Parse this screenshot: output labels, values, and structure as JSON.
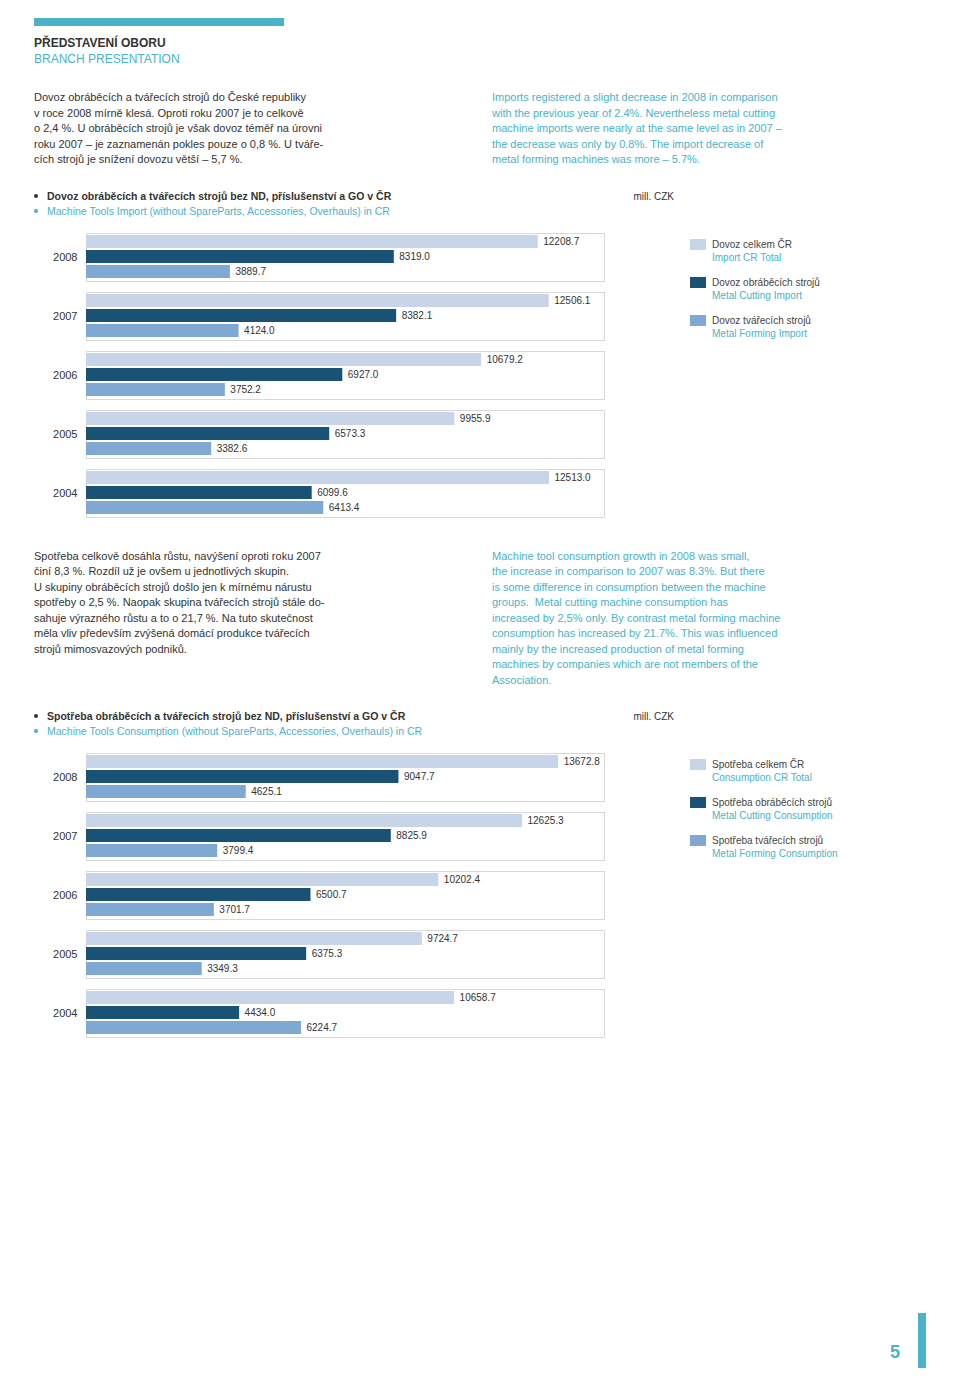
{
  "title": "PŘEDSTAVENÍ OBORU",
  "subtitle": "BRANCH PRESENTATION",
  "annotations": [
    "5"
  ],
  "chart_data": [
    {
      "type": "bar",
      "orientation": "horizontal",
      "title": "Dovoz obráběcích a tvářecích strojů bez ND, příslušenství a GO v ČR",
      "subtitle": "Machine Tools Import (without SpareParts, Accessories, Overhauls) in CR",
      "xlabel": "mill. CZK",
      "annotations": [
        [
          "Dovoz obráběcích a tvářecích strojů do České republiky",
          "v roce 2008 mírně klesá. Oproti roku 2007 je to celkově",
          "o 2,4 %. U obráběcích strojů je však dovoz téměř na úrovni",
          "roku 2007 – je zaznamenán pokles pouze o 0,8 %. U tváře-",
          "cích strojů je snížení dovozu větší – 5,7 %."
        ],
        [
          "Imports registered a slight decrease in 2008 in comparison",
          "with the previous year of 2.4%. Nevertheless metal cutting",
          "machine imports were nearly at the same level as in 2007 –",
          "the decrease was only by 0.8%. The import decrease of",
          "metal forming machines was more – 5.7%."
        ]
      ],
      "categories": [
        "2008",
        "2007",
        "2006",
        "2005",
        "2004"
      ],
      "series": [
        {
          "name": "Dovoz celkem ČR\nImport CR Total",
          "color": "#c8d4e8",
          "values": [
            12208.7,
            12506.1,
            10679.2,
            9955.9,
            12513.0
          ],
          "value_labels": [
            "12208.7",
            "12506.1",
            "10679.2",
            "9955.9",
            "12513.0"
          ]
        },
        {
          "name": "Dovoz obráběcích strojů\nMetal Cutting Import",
          "color": "#1a5276",
          "values": [
            8319.0,
            8382.1,
            6927.0,
            6573.3,
            6099.6
          ],
          "value_labels": [
            "8319.0",
            "8382.1",
            "6927.0",
            "6573.3",
            "6099.6"
          ]
        },
        {
          "name": "Dovoz tvářecích strojů\nMetal Forming Import",
          "color": "#7fa8d2",
          "values": [
            3889.7,
            4124.0,
            3752.2,
            3382.6,
            6413.4
          ],
          "value_labels": [
            "3889.7",
            "4124.0",
            "3752.2",
            "3382.6",
            "6413.4"
          ]
        }
      ],
      "xlim": [
        0,
        14000
      ],
      "xticks": [],
      "tick_labels": "y",
      "grid": false,
      "legend": "right",
      "data_labels": true
    },
    {
      "type": "bar",
      "orientation": "horizontal",
      "title": "Spotřeba obráběcích a tvářecích strojů bez ND, příslušenství a GO v ČR",
      "subtitle": "Machine Tools Consumption (without SpareParts, Accessories, Overhauls) in CR",
      "xlabel": "mill. CZK",
      "annotations": [
        [
          "Spotřeba celkově dosáhla růstu, navýšení oproti roku 2007",
          "činí 8,3 %. Rozdíl už je ovšem u jednotlivých skupin.",
          "U skupiny obráběcích strojů došlo jen k mírnému nárustu",
          "spotřeby o 2,5 %. Naopak skupina tvářecích strojů stále do-",
          "sahuje výrazného růstu a to o 21,7 %. Na tuto skutečnost",
          "měla vliv především zvýšená domácí produkce tvářecích",
          "strojů mimosvazových podniků."
        ],
        [
          "Machine tool consumption growth in 2008 was small,",
          "the increase in comparison to 2007 was 8.3%. But there",
          "is some difference in consumption between the machine",
          "groups.  Metal cutting machine consumption has",
          "increased by 2,5% only. By contrast metal forming machine",
          "consumption has increased by 21.7%. This was influenced",
          "mainly by the increased production of metal forming",
          "machines by companies which are not members of the",
          "Association."
        ]
      ],
      "categories": [
        "2008",
        "2007",
        "2006",
        "2005",
        "2004"
      ],
      "series": [
        {
          "name": "Spotřeba celkem ČR\nConsumption CR Total",
          "color": "#c8d4e8",
          "values": [
            13672.8,
            12625.3,
            10202.4,
            9724.7,
            10658.7
          ],
          "value_labels": [
            "13672.8",
            "12625.3",
            "10202.4",
            "9724.7",
            "10658.7"
          ]
        },
        {
          "name": "Spotřeba obráběcích strojů\nMetal Cutting Consumption",
          "color": "#1a5276",
          "values": [
            9047.7,
            8825.9,
            6500.7,
            6375.3,
            4434.0
          ],
          "value_labels": [
            "9047.7",
            "8825.9",
            "6500.7",
            "6375.3",
            "4434.0"
          ]
        },
        {
          "name": "Spotřeba tvářecích strojů\nMetal Forming Consumption",
          "color": "#7fa8d2",
          "values": [
            4625.1,
            3799.4,
            3701.7,
            3349.3,
            6224.7
          ],
          "value_labels": [
            "4625.1",
            "3799.4",
            "3701.7",
            "3349.3",
            "6224.7"
          ]
        }
      ],
      "xlim": [
        0,
        15000
      ],
      "xticks": [],
      "tick_labels": "y",
      "grid": false,
      "legend": "right",
      "data_labels": true
    }
  ]
}
